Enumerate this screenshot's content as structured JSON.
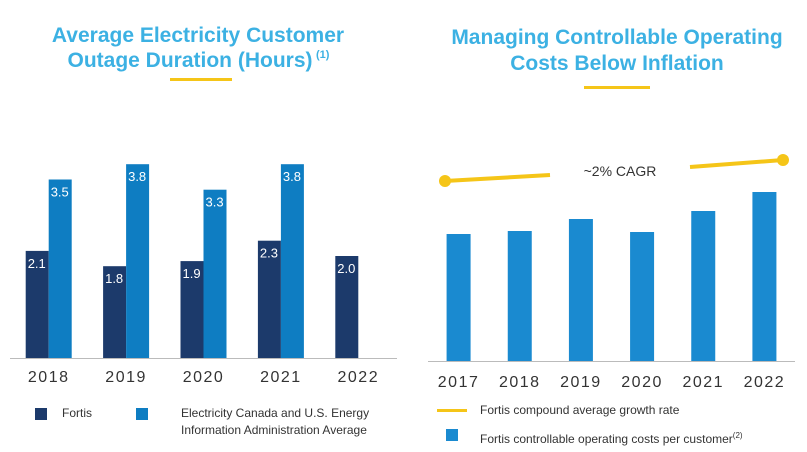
{
  "chart_data": [
    {
      "type": "bar",
      "title": [
        "Average Electricity Customer",
        "Outage Duration (Hours)"
      ],
      "title_note": "(1)",
      "categories": [
        "2018",
        "2019",
        "2020",
        "2021",
        "2022"
      ],
      "series": [
        {
          "name": "Fortis",
          "color": "#1c3a6b",
          "values": [
            2.1,
            1.8,
            1.9,
            2.3,
            2.0
          ],
          "value_labels": [
            "2.1",
            "1.8",
            "1.9",
            "2.3",
            "2.0"
          ]
        },
        {
          "name": "Electricity Canada and U.S. Energy Information Administration Average",
          "color": "#0e7dc2",
          "values": [
            3.5,
            3.8,
            3.3,
            3.8,
            null
          ],
          "value_labels": [
            "3.5",
            "3.8",
            "3.3",
            "3.8",
            null
          ]
        }
      ]
    },
    {
      "type": "bar",
      "title": [
        "Managing Controllable Operating",
        "Costs Below Inflation"
      ],
      "categories": [
        "2017",
        "2018",
        "2019",
        "2020",
        "2021",
        "2022"
      ],
      "series": [
        {
          "name": "Fortis controllable operating costs per customer",
          "name_note": "(2)",
          "color": "#1a8ad0",
          "values": [
            127,
            130,
            142,
            129,
            150,
            169
          ]
        }
      ],
      "trend": {
        "name": "Fortis compound average growth rate",
        "label": "~2% CAGR",
        "color": "#f5c518"
      }
    }
  ]
}
